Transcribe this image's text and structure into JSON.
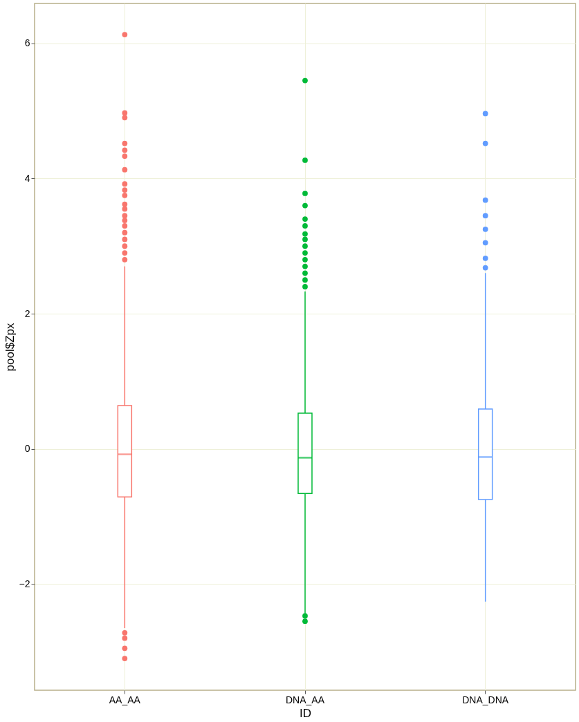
{
  "chart_data": {
    "type": "box",
    "xlabel": "ID",
    "ylabel": "pool$Zpx",
    "categories": [
      "AA_AA",
      "DNA_AA",
      "DNA_DNA"
    ],
    "colors": [
      "#f8766d",
      "#00ba38",
      "#619cff"
    ],
    "boxes": [
      {
        "low": -2.65,
        "q1": -0.71,
        "median": -0.08,
        "q3": 0.64,
        "high": 2.7,
        "outliers": [
          6.13,
          4.97,
          4.9,
          4.52,
          4.42,
          4.33,
          4.13,
          3.92,
          3.83,
          3.75,
          3.62,
          3.55,
          3.45,
          3.38,
          3.3,
          3.2,
          3.1,
          3.0,
          2.9,
          2.8,
          -2.72,
          -2.8,
          -2.95,
          -3.1
        ]
      },
      {
        "low": -2.45,
        "q1": -0.66,
        "median": -0.13,
        "q3": 0.53,
        "high": 2.33,
        "outliers": [
          5.45,
          4.27,
          3.78,
          3.6,
          3.4,
          3.3,
          3.18,
          3.1,
          3.0,
          2.9,
          2.8,
          2.7,
          2.6,
          2.5,
          2.4,
          -2.47,
          -2.55
        ]
      },
      {
        "low": -2.26,
        "q1": -0.75,
        "median": -0.12,
        "q3": 0.59,
        "high": 2.6,
        "outliers": [
          4.96,
          4.52,
          3.68,
          3.45,
          3.25,
          3.05,
          2.82,
          2.68
        ]
      }
    ],
    "ylim": [
      -3.57,
      6.59
    ],
    "yticks": [
      -2,
      0,
      2,
      4,
      6
    ],
    "grid": true
  }
}
